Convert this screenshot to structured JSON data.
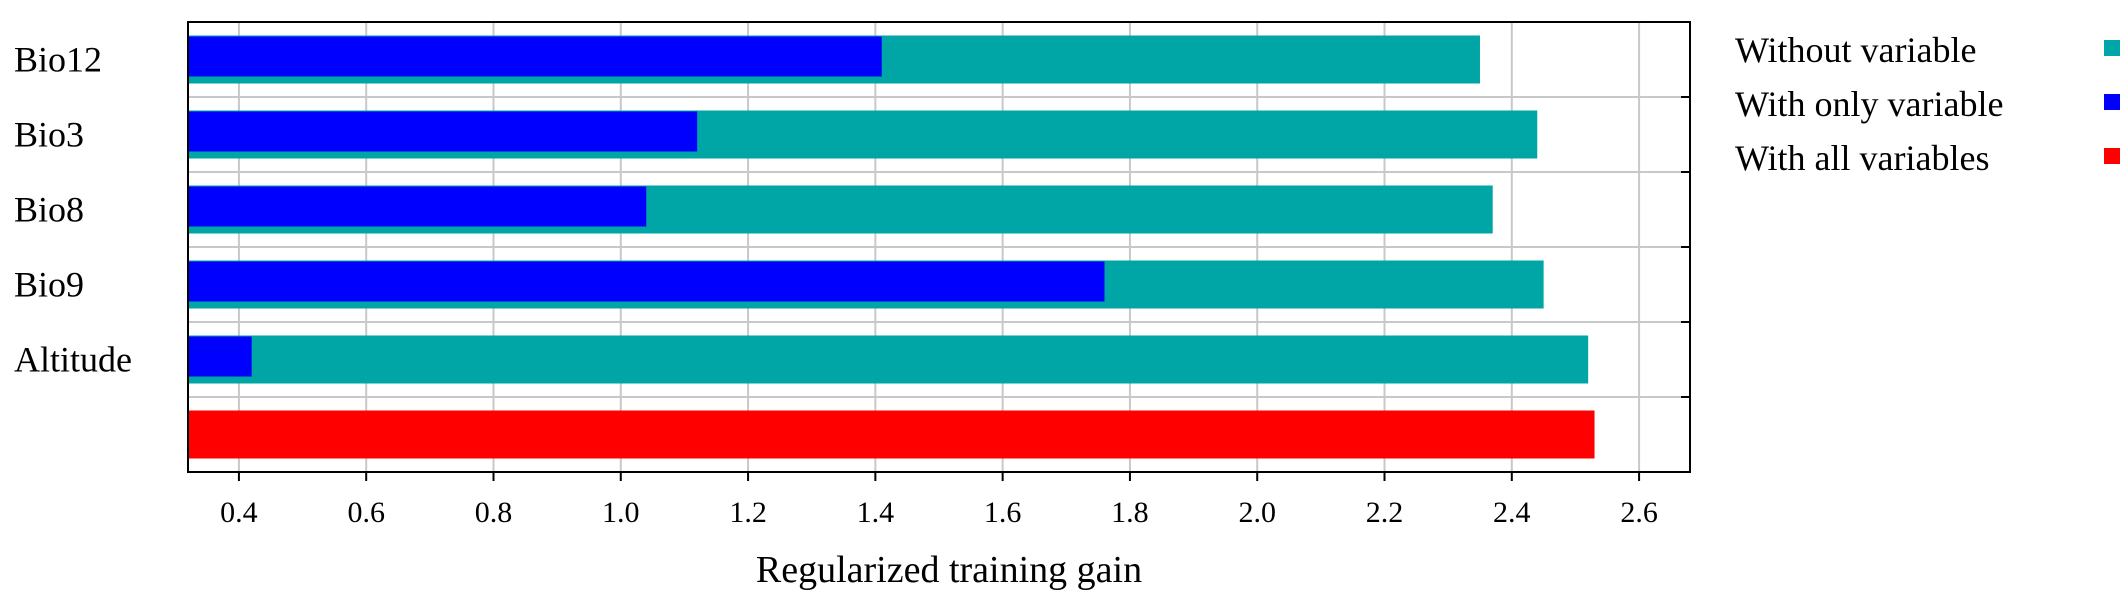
{
  "chart_data": {
    "type": "bar",
    "orientation": "horizontal",
    "xlabel": "Regularized training gain",
    "ylabel": "",
    "title": "",
    "xlim": [
      0.32,
      2.68
    ],
    "xticks": [
      "0.4",
      "0.6",
      "0.8",
      "1.0",
      "1.2",
      "1.4",
      "1.6",
      "1.8",
      "2.0",
      "2.2",
      "2.4",
      "2.6"
    ],
    "grid": true,
    "legend_position": "right",
    "categories": [
      "Bio12",
      "Bio3",
      "Bio8",
      "Bio9",
      "Altitude",
      ""
    ],
    "series": [
      {
        "name": "Without variable",
        "color": "#00a5a5",
        "values": [
          2.35,
          2.44,
          2.37,
          2.45,
          2.52,
          null
        ]
      },
      {
        "name": "With only variable",
        "color": "#0000ff",
        "values": [
          1.41,
          1.12,
          1.04,
          1.76,
          0.42,
          null
        ]
      },
      {
        "name": "With all variables",
        "color": "#ff0000",
        "values": [
          null,
          null,
          null,
          null,
          null,
          2.53
        ]
      }
    ]
  }
}
